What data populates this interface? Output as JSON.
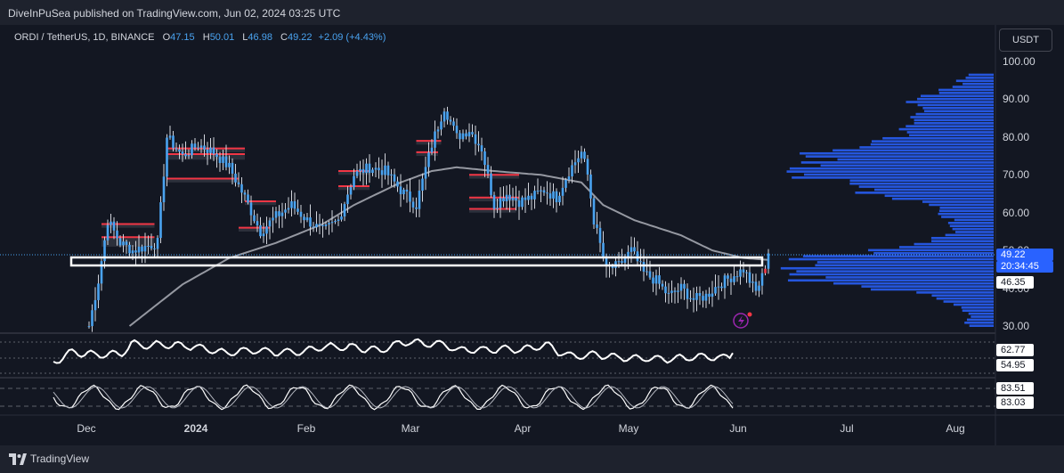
{
  "header": {
    "published": "DiveInPuSea published on TradingView.com, Jun 02, 2024 03:25 UTC"
  },
  "legend": {
    "symbol": "ORDI / TetherUS, 1D, BINANCE",
    "o_label": "O",
    "o_value": "47.15",
    "h_label": "H",
    "h_value": "50.01",
    "l_label": "L",
    "l_value": "46.98",
    "c_label": "C",
    "c_value": "49.22",
    "change": "+2.09 (+4.43%)"
  },
  "currency_button": "USDT",
  "price_tags": {
    "last_price": "49.22",
    "countdown": "20:34:45",
    "level": "46.35",
    "osc1_a": "62.77",
    "osc1_b": "54.95",
    "osc2_a": "83.51",
    "osc2_b": "83.03"
  },
  "footer": {
    "brand": "TradingView"
  },
  "colors": {
    "up": "#4aa3f0",
    "down": "#4aa3f0",
    "box": "#f23645",
    "volume_profile": "#2962ff",
    "ma": "#9598a1"
  },
  "chart_data": {
    "type": "candlestick",
    "y_ticks": [
      "100.00",
      "90.00",
      "80.00",
      "70.00",
      "60.00",
      "50.00",
      "40.00",
      "30.00"
    ],
    "ylim": [
      28,
      103
    ],
    "x_ticks": [
      "Dec",
      "2024",
      "Feb",
      "Mar",
      "Apr",
      "May",
      "Jun",
      "Jul",
      "Aug"
    ],
    "last_close": 49.22,
    "support_zone": [
      46.35,
      48.6
    ],
    "waypoints_close": [
      [
        0,
        30
      ],
      [
        3,
        42
      ],
      [
        6,
        58
      ],
      [
        10,
        52
      ],
      [
        14,
        50
      ],
      [
        18,
        51
      ],
      [
        22,
        52
      ],
      [
        25,
        80
      ],
      [
        30,
        75
      ],
      [
        35,
        78
      ],
      [
        40,
        76
      ],
      [
        45,
        72
      ],
      [
        50,
        64
      ],
      [
        55,
        55
      ],
      [
        60,
        59
      ],
      [
        65,
        62
      ],
      [
        70,
        58
      ],
      [
        75,
        55
      ],
      [
        80,
        58
      ],
      [
        85,
        70
      ],
      [
        90,
        72
      ],
      [
        95,
        71
      ],
      [
        100,
        66
      ],
      [
        105,
        62
      ],
      [
        110,
        78
      ],
      [
        114,
        88
      ],
      [
        118,
        80
      ],
      [
        122,
        82
      ],
      [
        126,
        77
      ],
      [
        130,
        62
      ],
      [
        134,
        65
      ],
      [
        138,
        63
      ],
      [
        142,
        64
      ],
      [
        146,
        66
      ],
      [
        150,
        64
      ],
      [
        154,
        71
      ],
      [
        158,
        76
      ],
      [
        160,
        70
      ],
      [
        162,
        58
      ],
      [
        166,
        45
      ],
      [
        170,
        46
      ],
      [
        174,
        50
      ],
      [
        178,
        44
      ],
      [
        182,
        42
      ],
      [
        186,
        38
      ],
      [
        190,
        40
      ],
      [
        194,
        37
      ],
      [
        198,
        38
      ],
      [
        202,
        41
      ],
      [
        206,
        43
      ],
      [
        210,
        45
      ],
      [
        214,
        39
      ],
      [
        216,
        43
      ],
      [
        218,
        49.22
      ]
    ],
    "ma_waypoints": [
      [
        13,
        30
      ],
      [
        30,
        41
      ],
      [
        45,
        48
      ],
      [
        60,
        52
      ],
      [
        75,
        57
      ],
      [
        85,
        62
      ],
      [
        100,
        68
      ],
      [
        110,
        71
      ],
      [
        118,
        72
      ],
      [
        130,
        71
      ],
      [
        145,
        70
      ],
      [
        158,
        68
      ],
      [
        165,
        62
      ],
      [
        175,
        58
      ],
      [
        190,
        54
      ],
      [
        200,
        50
      ],
      [
        210,
        48
      ],
      [
        218,
        47.5
      ]
    ],
    "boxes": [
      [
        4,
        21,
        51,
        53.5
      ],
      [
        4,
        21,
        56,
        57
      ],
      [
        25,
        50,
        74,
        75.5
      ],
      [
        25,
        50,
        76,
        77
      ],
      [
        25,
        48,
        68,
        69
      ],
      [
        48,
        58,
        55,
        56
      ],
      [
        50,
        60,
        62,
        63
      ],
      [
        80,
        90,
        66,
        67
      ],
      [
        80,
        90,
        70,
        71
      ],
      [
        105,
        113,
        78,
        79
      ],
      [
        105,
        112,
        75,
        76
      ],
      [
        122,
        138,
        63,
        64
      ],
      [
        122,
        138,
        69,
        70
      ],
      [
        122,
        137,
        60,
        61
      ]
    ],
    "osc1_levels": [
      "62.77",
      "54.95"
    ],
    "osc2_levels": [
      "83.51",
      "83.03"
    ]
  }
}
